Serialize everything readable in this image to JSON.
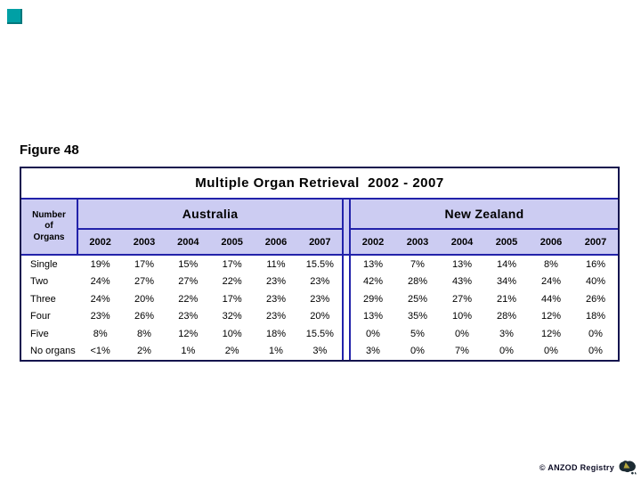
{
  "slide": {
    "figure_label": "Figure 48",
    "credit": "© ANZOD Registry"
  },
  "colors": {
    "accent_square": "#00a0a5",
    "band_background": "#ccccf2",
    "grid_line": "#2222aa",
    "outer_border": "#14144e",
    "logo_dark": "#1c2b33",
    "logo_accent": "#b3a53c"
  },
  "table": {
    "title": "Multiple Organ Retrieval  2002 - 2007",
    "row_header": "Number\nof\nOrgans",
    "groups": [
      {
        "name": "Australia",
        "years": [
          "2002",
          "2003",
          "2004",
          "2005",
          "2006",
          "2007"
        ]
      },
      {
        "name": "New Zealand",
        "years": [
          "2002",
          "2003",
          "2004",
          "2005",
          "2006",
          "2007"
        ]
      }
    ],
    "rows": [
      {
        "label": "Single",
        "australia": [
          "19%",
          "17%",
          "15%",
          "17%",
          "11%",
          "15.5%"
        ],
        "new_zealand": [
          "13%",
          "7%",
          "13%",
          "14%",
          "8%",
          "16%"
        ]
      },
      {
        "label": "Two",
        "australia": [
          "24%",
          "27%",
          "27%",
          "22%",
          "23%",
          "23%"
        ],
        "new_zealand": [
          "42%",
          "28%",
          "43%",
          "34%",
          "24%",
          "40%"
        ]
      },
      {
        "label": "Three",
        "australia": [
          "24%",
          "20%",
          "22%",
          "17%",
          "23%",
          "23%"
        ],
        "new_zealand": [
          "29%",
          "25%",
          "27%",
          "21%",
          "44%",
          "26%"
        ]
      },
      {
        "label": "Four",
        "australia": [
          "23%",
          "26%",
          "23%",
          "32%",
          "23%",
          "20%"
        ],
        "new_zealand": [
          "13%",
          "35%",
          "10%",
          "28%",
          "12%",
          "18%"
        ]
      },
      {
        "label": "Five",
        "australia": [
          "8%",
          "8%",
          "12%",
          "10%",
          "18%",
          "15.5%"
        ],
        "new_zealand": [
          "0%",
          "5%",
          "0%",
          "3%",
          "12%",
          "0%"
        ]
      },
      {
        "label": "No organs",
        "australia": [
          "<1%",
          "2%",
          "1%",
          "2%",
          "1%",
          "3%"
        ],
        "new_zealand": [
          "3%",
          "0%",
          "7%",
          "0%",
          "0%",
          "0%"
        ]
      }
    ]
  },
  "chart_data": {
    "type": "table",
    "title": "Multiple Organ Retrieval  2002 - 2007",
    "column_groups": [
      "Australia",
      "New Zealand"
    ],
    "columns": [
      "2002",
      "2003",
      "2004",
      "2005",
      "2006",
      "2007"
    ],
    "row_categories": [
      "Single",
      "Two",
      "Three",
      "Four",
      "Five",
      "No organs"
    ],
    "series": [
      {
        "name": "Australia",
        "values": [
          [
            "19%",
            "17%",
            "15%",
            "17%",
            "11%",
            "15.5%"
          ],
          [
            "24%",
            "27%",
            "27%",
            "22%",
            "23%",
            "23%"
          ],
          [
            "24%",
            "20%",
            "22%",
            "17%",
            "23%",
            "23%"
          ],
          [
            "23%",
            "26%",
            "23%",
            "32%",
            "23%",
            "20%"
          ],
          [
            "8%",
            "8%",
            "12%",
            "10%",
            "18%",
            "15.5%"
          ],
          [
            "<1%",
            "2%",
            "1%",
            "2%",
            "1%",
            "3%"
          ]
        ]
      },
      {
        "name": "New Zealand",
        "values": [
          [
            "13%",
            "7%",
            "13%",
            "14%",
            "8%",
            "16%"
          ],
          [
            "42%",
            "28%",
            "43%",
            "34%",
            "24%",
            "40%"
          ],
          [
            "29%",
            "25%",
            "27%",
            "21%",
            "44%",
            "26%"
          ],
          [
            "13%",
            "35%",
            "10%",
            "28%",
            "12%",
            "18%"
          ],
          [
            "0%",
            "5%",
            "0%",
            "3%",
            "12%",
            "0%"
          ],
          [
            "3%",
            "0%",
            "7%",
            "0%",
            "0%",
            "0%"
          ]
        ]
      }
    ]
  }
}
